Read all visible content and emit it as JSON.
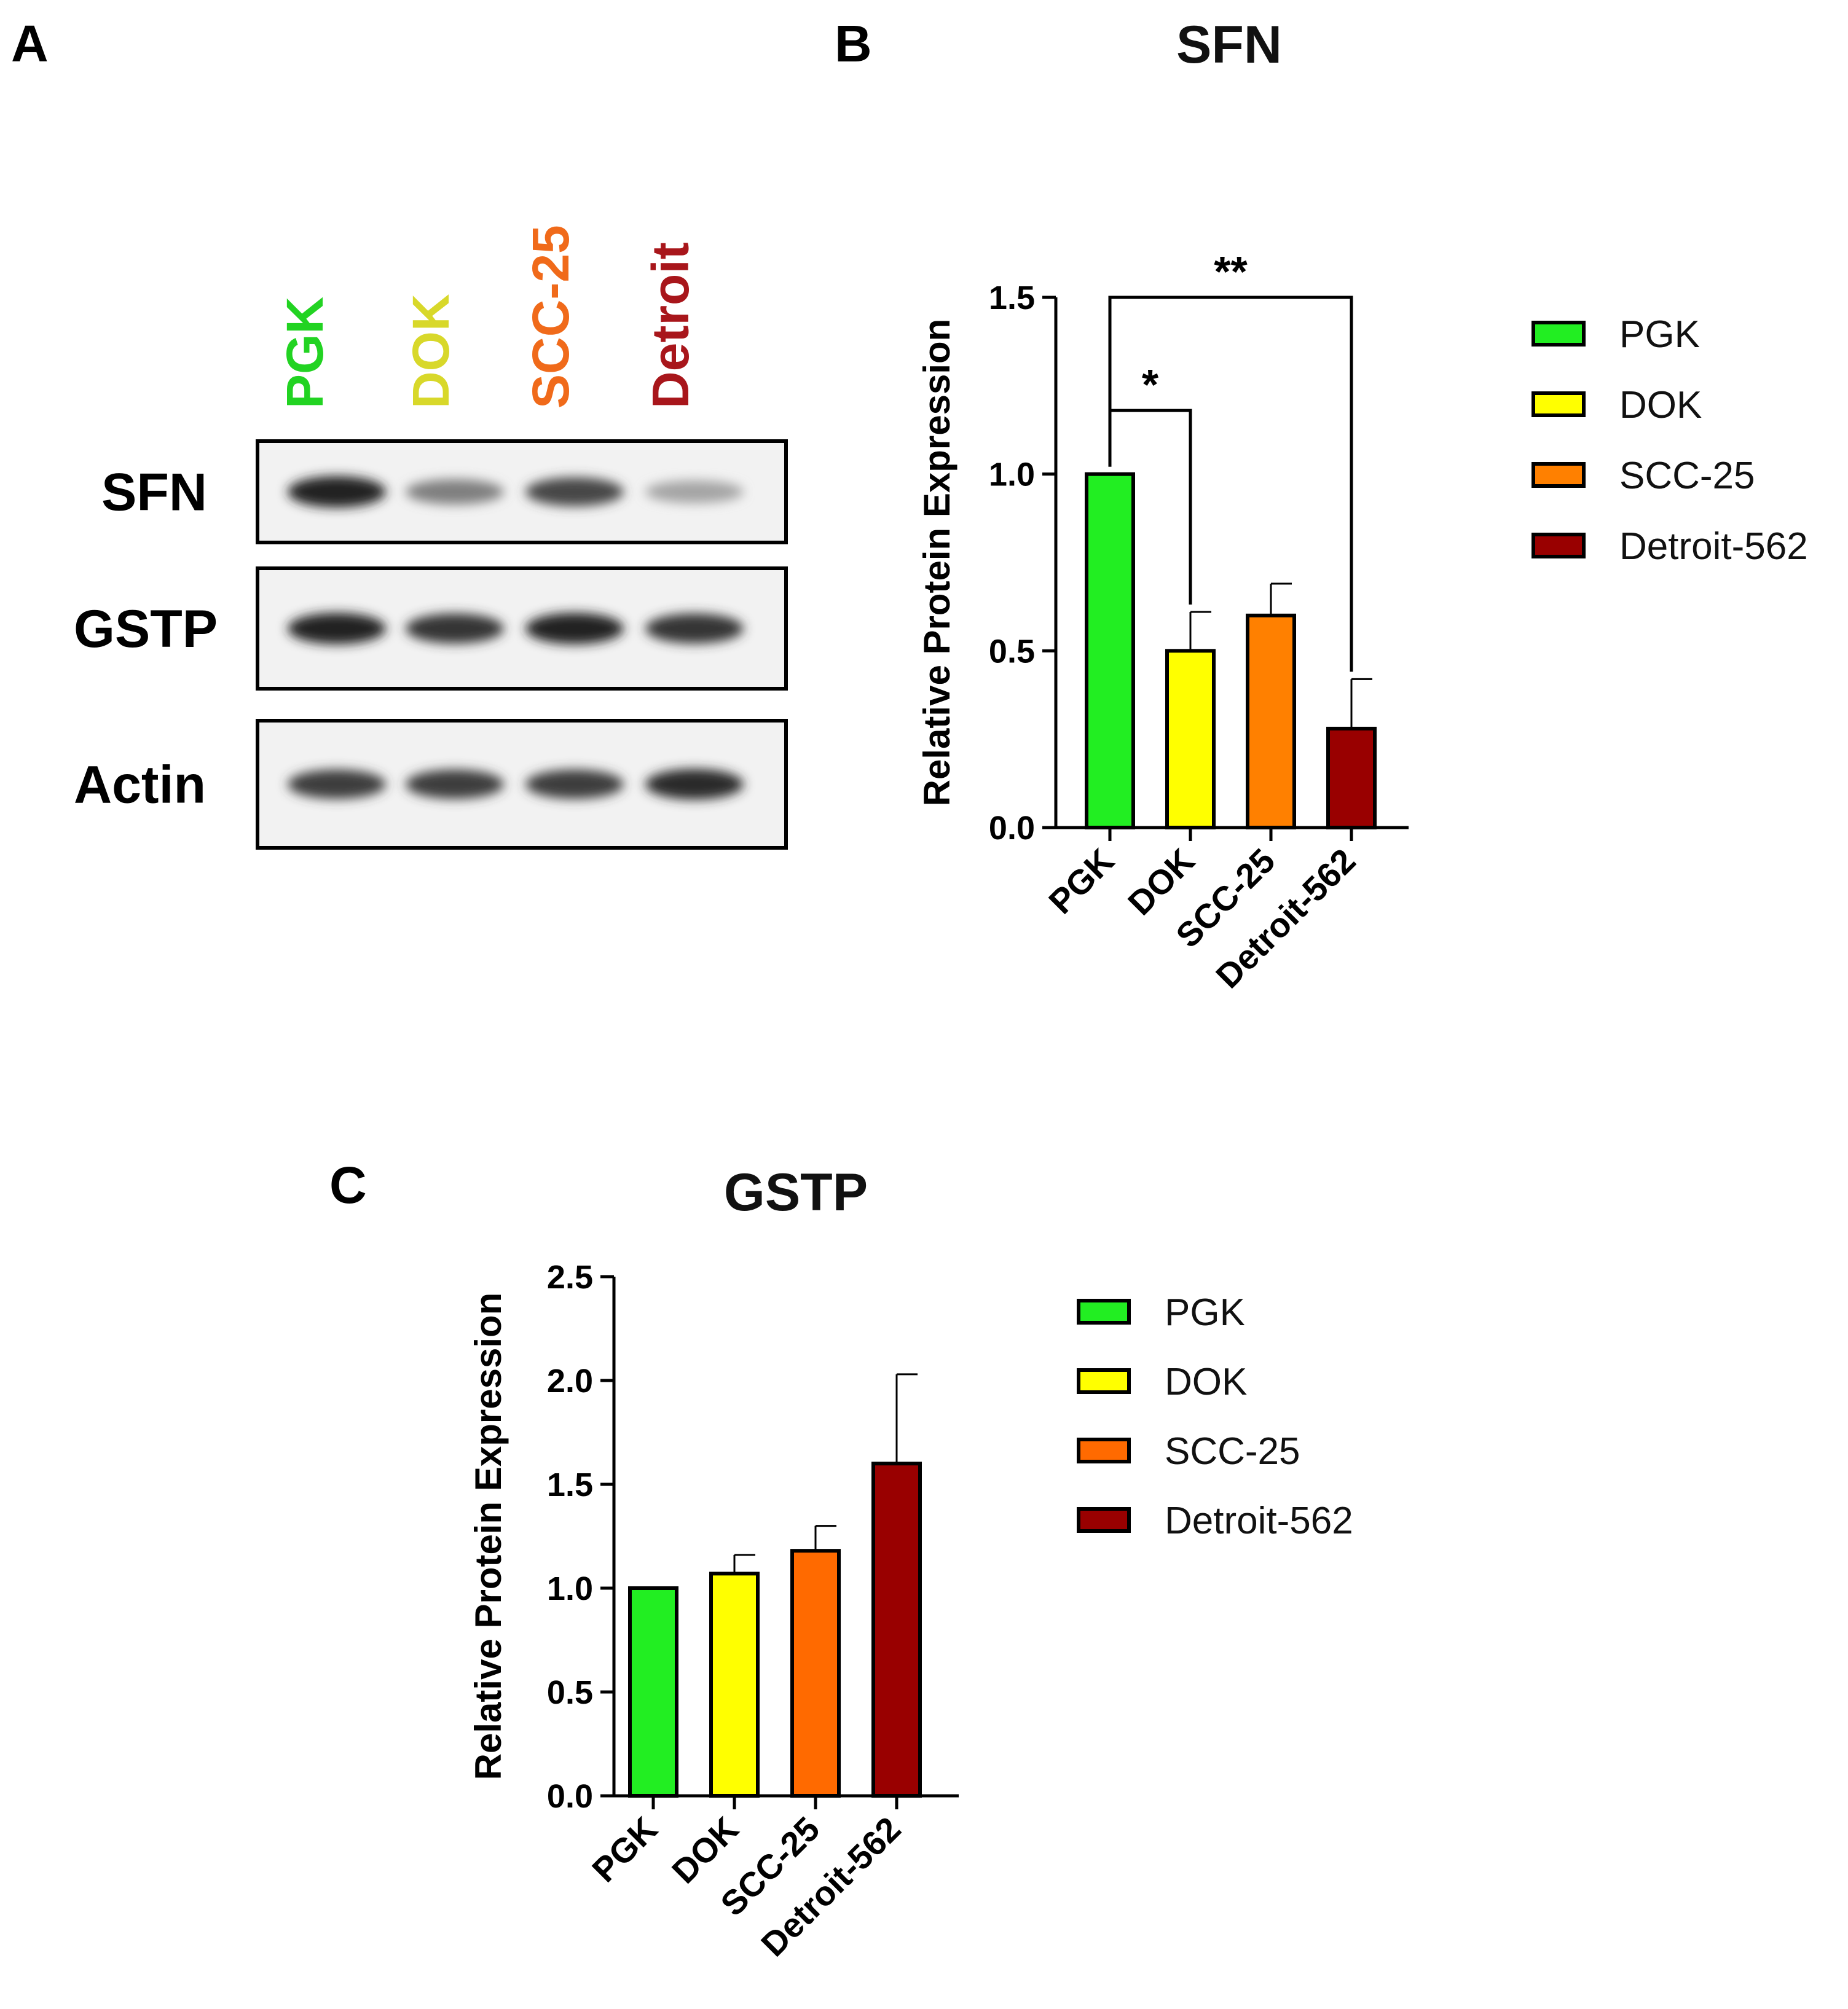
{
  "panels": {
    "a": {
      "letter": "A"
    },
    "b": {
      "letter": "B"
    },
    "c": {
      "letter": "C"
    }
  },
  "western_blot": {
    "lanes": [
      {
        "label": "PGK",
        "color": "#22d322"
      },
      {
        "label": "DOK",
        "color": "#d8d82a"
      },
      {
        "label": "SCC-25",
        "color": "#f06a1a"
      },
      {
        "label": "Detroit",
        "color": "#a8161b"
      }
    ],
    "rows": [
      {
        "label": "SFN",
        "band_intensity": [
          0.95,
          0.45,
          0.75,
          0.25
        ]
      },
      {
        "label": "GSTP",
        "band_intensity": [
          0.95,
          0.85,
          0.95,
          0.85
        ]
      },
      {
        "label": "Actin",
        "band_intensity": [
          0.8,
          0.8,
          0.8,
          0.9
        ]
      }
    ]
  },
  "chart_data": [
    {
      "id": "sfn",
      "type": "bar",
      "title": "SFN",
      "categories": [
        "PGK",
        "DOK",
        "SCC-25",
        "Detroit-562"
      ],
      "values": [
        1.0,
        0.5,
        0.6,
        0.28
      ],
      "errors": [
        0.0,
        0.11,
        0.09,
        0.14
      ],
      "colors": [
        "#22ee22",
        "#ffff00",
        "#ff8000",
        "#990000"
      ],
      "xlabel": "",
      "ylabel": "Relative Protein Expression",
      "ylim": [
        0,
        1.5
      ],
      "yticks": [
        0.0,
        0.5,
        1.0,
        1.5
      ],
      "ytick_labels": [
        "0.0",
        "0.5",
        "1.0",
        "1.5"
      ],
      "legend": [
        "PGK",
        "DOK",
        "SCC-25",
        "Detroit-562"
      ],
      "legend_position": "right",
      "significance": [
        {
          "from": 0,
          "to": 1,
          "label": "*",
          "level": 1.18
        },
        {
          "from": 0,
          "to": 3,
          "label": "**",
          "level": 1.5
        }
      ]
    },
    {
      "id": "gstp",
      "type": "bar",
      "title": "GSTP",
      "categories": [
        "PGK",
        "DOK",
        "SCC-25",
        "Detroit-562"
      ],
      "values": [
        1.0,
        1.07,
        1.18,
        1.6
      ],
      "errors": [
        0.0,
        0.09,
        0.12,
        0.43
      ],
      "colors": [
        "#22ee22",
        "#ffff00",
        "#ff6a00",
        "#990000"
      ],
      "xlabel": "",
      "ylabel": "Relative Protein Expression",
      "ylim": [
        0,
        2.5
      ],
      "yticks": [
        0.0,
        0.5,
        1.0,
        1.5,
        2.0,
        2.5
      ],
      "ytick_labels": [
        "0.0",
        "0.5",
        "1.0",
        "1.5",
        "2.0",
        "2.5"
      ],
      "legend": [
        "PGK",
        "DOK",
        "SCC-25",
        "Detroit-562"
      ],
      "legend_position": "right"
    }
  ]
}
